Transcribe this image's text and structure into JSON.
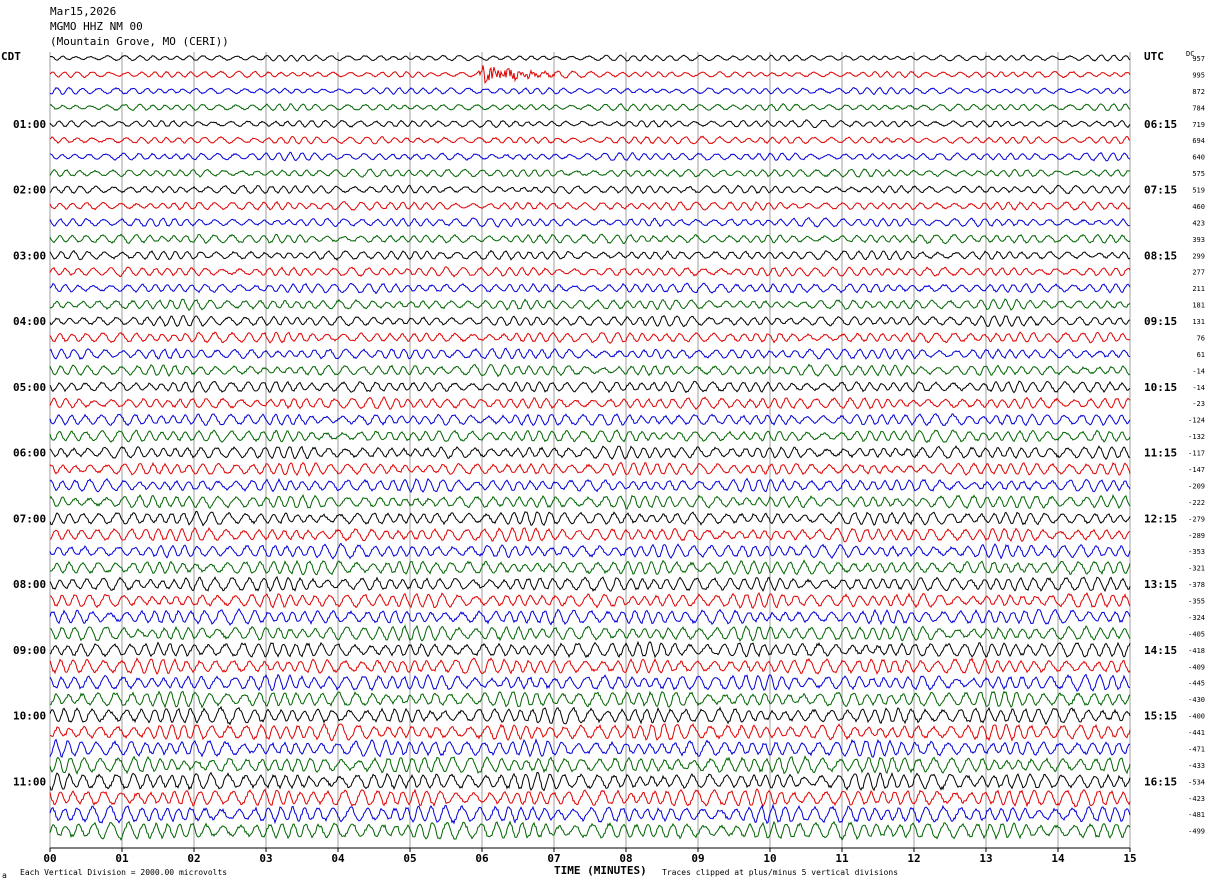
{
  "header": {
    "date": "Mar15,2026",
    "station": "MGMO HHZ NM 00",
    "location": "(Mountain Grove, MO (CERI))"
  },
  "left_axis_label": "CDT",
  "right_axis_label": "UTC",
  "dc_label": "DC",
  "footer": {
    "scale_note": "Each Vertical Division = 2000.00 microvolts",
    "clip_note": "Traces clipped at plus/minus 5 vertical divisions",
    "corner_mark": "a"
  },
  "chart_data": {
    "type": "line",
    "title": "",
    "xlabel": "TIME (MINUTES)",
    "ylabel": "",
    "xlim": [
      0,
      15
    ],
    "x_tick_labels": [
      "00",
      "01",
      "02",
      "03",
      "04",
      "05",
      "06",
      "07",
      "08",
      "09",
      "10",
      "11",
      "12",
      "13",
      "14",
      "15"
    ],
    "grid": true,
    "trace_count": 48,
    "minutes_per_trace": 15,
    "trace_colors": [
      "#000000",
      "#e00000",
      "#0000d8",
      "#006400"
    ],
    "local_time_labels": [
      "01:00",
      "02:00",
      "03:00",
      "04:00",
      "05:00",
      "06:00",
      "07:00",
      "08:00",
      "09:00",
      "10:00",
      "11:00"
    ],
    "utc_time_labels": [
      "06:15",
      "07:15",
      "08:15",
      "09:15",
      "10:15",
      "11:15",
      "12:15",
      "13:15",
      "14:15",
      "15:15",
      "16:15"
    ],
    "dc_offsets": [
      957,
      995,
      872,
      784,
      719,
      694,
      640,
      575,
      519,
      460,
      423,
      393,
      299,
      277,
      211,
      181,
      131,
      76,
      61,
      -14,
      -14,
      -23,
      -124,
      -132,
      -117,
      -147,
      -209,
      -222,
      -279,
      -289,
      -353,
      -321,
      -378,
      -355,
      -324,
      -405,
      -418,
      -409,
      -445,
      -430,
      -400,
      -441,
      -471,
      -433,
      -534,
      -423,
      -481,
      -499
    ],
    "events": [
      {
        "trace": 1,
        "start_min": 5.95,
        "end_min": 7.3,
        "note": "high-amplitude burst"
      }
    ]
  }
}
